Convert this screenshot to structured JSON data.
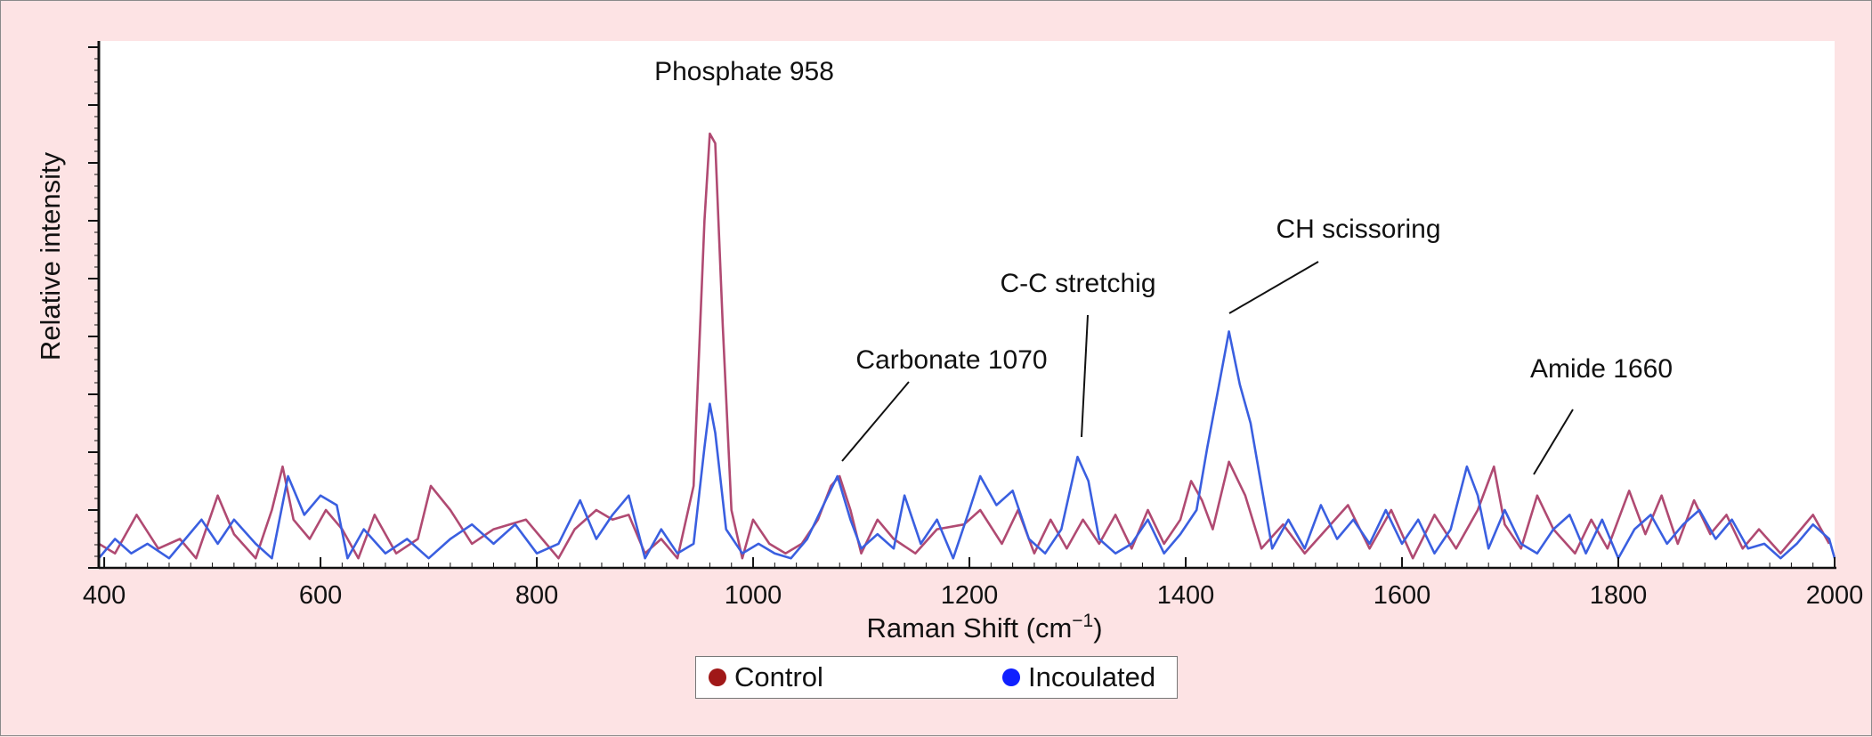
{
  "chart_data": {
    "type": "line",
    "title": "",
    "xlabel": "Raman Shift (cm",
    "xlabel_superscript": "−1",
    "xlabel_suffix": ")",
    "ylabel": "Relative intensity",
    "xlim": [
      400,
      2000
    ],
    "ylim": [
      0,
      1
    ],
    "x_ticks": [
      400,
      600,
      800,
      1000,
      1200,
      1400,
      1600,
      1800,
      2000
    ],
    "y_ticks_labeled": false,
    "grid": false,
    "legend_position": "bottom-center",
    "series": [
      {
        "name": "Control",
        "color": "#b04a72",
        "legend_color": "#a01818",
        "points": [
          [
            395,
            0.05
          ],
          [
            410,
            0.03
          ],
          [
            430,
            0.11
          ],
          [
            450,
            0.04
          ],
          [
            470,
            0.06
          ],
          [
            485,
            0.02
          ],
          [
            505,
            0.15
          ],
          [
            520,
            0.07
          ],
          [
            540,
            0.02
          ],
          [
            555,
            0.12
          ],
          [
            565,
            0.21
          ],
          [
            575,
            0.1
          ],
          [
            590,
            0.06
          ],
          [
            605,
            0.12
          ],
          [
            620,
            0.08
          ],
          [
            635,
            0.02
          ],
          [
            650,
            0.11
          ],
          [
            670,
            0.03
          ],
          [
            690,
            0.06
          ],
          [
            702,
            0.17
          ],
          [
            720,
            0.12
          ],
          [
            740,
            0.05
          ],
          [
            760,
            0.08
          ],
          [
            790,
            0.1
          ],
          [
            805,
            0.06
          ],
          [
            820,
            0.02
          ],
          [
            835,
            0.08
          ],
          [
            855,
            0.12
          ],
          [
            870,
            0.1
          ],
          [
            885,
            0.11
          ],
          [
            900,
            0.03
          ],
          [
            915,
            0.06
          ],
          [
            930,
            0.02
          ],
          [
            945,
            0.17
          ],
          [
            955,
            0.72
          ],
          [
            960,
            0.9
          ],
          [
            965,
            0.88
          ],
          [
            972,
            0.5
          ],
          [
            980,
            0.12
          ],
          [
            990,
            0.02
          ],
          [
            1000,
            0.1
          ],
          [
            1015,
            0.05
          ],
          [
            1030,
            0.03
          ],
          [
            1045,
            0.05
          ],
          [
            1060,
            0.1
          ],
          [
            1072,
            0.17
          ],
          [
            1080,
            0.19
          ],
          [
            1090,
            0.12
          ],
          [
            1100,
            0.03
          ],
          [
            1115,
            0.1
          ],
          [
            1130,
            0.06
          ],
          [
            1150,
            0.03
          ],
          [
            1170,
            0.08
          ],
          [
            1195,
            0.09
          ],
          [
            1210,
            0.12
          ],
          [
            1230,
            0.05
          ],
          [
            1245,
            0.12
          ],
          [
            1260,
            0.03
          ],
          [
            1275,
            0.1
          ],
          [
            1290,
            0.04
          ],
          [
            1305,
            0.1
          ],
          [
            1320,
            0.05
          ],
          [
            1335,
            0.11
          ],
          [
            1350,
            0.04
          ],
          [
            1365,
            0.12
          ],
          [
            1380,
            0.05
          ],
          [
            1395,
            0.1
          ],
          [
            1405,
            0.18
          ],
          [
            1415,
            0.14
          ],
          [
            1425,
            0.08
          ],
          [
            1440,
            0.22
          ],
          [
            1455,
            0.15
          ],
          [
            1470,
            0.04
          ],
          [
            1490,
            0.09
          ],
          [
            1510,
            0.03
          ],
          [
            1530,
            0.08
          ],
          [
            1550,
            0.13
          ],
          [
            1570,
            0.04
          ],
          [
            1590,
            0.12
          ],
          [
            1610,
            0.02
          ],
          [
            1630,
            0.11
          ],
          [
            1650,
            0.04
          ],
          [
            1670,
            0.12
          ],
          [
            1685,
            0.21
          ],
          [
            1695,
            0.09
          ],
          [
            1710,
            0.04
          ],
          [
            1725,
            0.15
          ],
          [
            1740,
            0.08
          ],
          [
            1760,
            0.03
          ],
          [
            1775,
            0.1
          ],
          [
            1790,
            0.04
          ],
          [
            1810,
            0.16
          ],
          [
            1825,
            0.07
          ],
          [
            1840,
            0.15
          ],
          [
            1855,
            0.05
          ],
          [
            1870,
            0.14
          ],
          [
            1885,
            0.07
          ],
          [
            1900,
            0.11
          ],
          [
            1915,
            0.04
          ],
          [
            1930,
            0.08
          ],
          [
            1950,
            0.03
          ],
          [
            1965,
            0.07
          ],
          [
            1980,
            0.11
          ],
          [
            1995,
            0.05
          ]
        ]
      },
      {
        "name": "Incoulated",
        "color": "#3a5fe0",
        "legend_color": "#1020ff",
        "points": [
          [
            395,
            0.02
          ],
          [
            410,
            0.06
          ],
          [
            425,
            0.03
          ],
          [
            440,
            0.05
          ],
          [
            460,
            0.02
          ],
          [
            475,
            0.06
          ],
          [
            490,
            0.1
          ],
          [
            505,
            0.05
          ],
          [
            520,
            0.1
          ],
          [
            540,
            0.05
          ],
          [
            555,
            0.02
          ],
          [
            570,
            0.19
          ],
          [
            585,
            0.11
          ],
          [
            600,
            0.15
          ],
          [
            615,
            0.13
          ],
          [
            625,
            0.02
          ],
          [
            640,
            0.08
          ],
          [
            660,
            0.03
          ],
          [
            680,
            0.06
          ],
          [
            700,
            0.02
          ],
          [
            720,
            0.06
          ],
          [
            740,
            0.09
          ],
          [
            760,
            0.05
          ],
          [
            780,
            0.09
          ],
          [
            800,
            0.03
          ],
          [
            820,
            0.05
          ],
          [
            840,
            0.14
          ],
          [
            855,
            0.06
          ],
          [
            870,
            0.11
          ],
          [
            885,
            0.15
          ],
          [
            900,
            0.02
          ],
          [
            915,
            0.08
          ],
          [
            930,
            0.03
          ],
          [
            945,
            0.05
          ],
          [
            955,
            0.25
          ],
          [
            960,
            0.34
          ],
          [
            965,
            0.28
          ],
          [
            975,
            0.08
          ],
          [
            990,
            0.03
          ],
          [
            1005,
            0.05
          ],
          [
            1020,
            0.03
          ],
          [
            1035,
            0.02
          ],
          [
            1050,
            0.06
          ],
          [
            1065,
            0.13
          ],
          [
            1078,
            0.19
          ],
          [
            1090,
            0.1
          ],
          [
            1100,
            0.04
          ],
          [
            1115,
            0.07
          ],
          [
            1130,
            0.04
          ],
          [
            1140,
            0.15
          ],
          [
            1155,
            0.05
          ],
          [
            1170,
            0.1
          ],
          [
            1185,
            0.02
          ],
          [
            1200,
            0.12
          ],
          [
            1210,
            0.19
          ],
          [
            1225,
            0.13
          ],
          [
            1240,
            0.16
          ],
          [
            1255,
            0.06
          ],
          [
            1270,
            0.03
          ],
          [
            1285,
            0.08
          ],
          [
            1300,
            0.23
          ],
          [
            1310,
            0.18
          ],
          [
            1320,
            0.06
          ],
          [
            1335,
            0.03
          ],
          [
            1350,
            0.05
          ],
          [
            1365,
            0.1
          ],
          [
            1380,
            0.03
          ],
          [
            1395,
            0.07
          ],
          [
            1410,
            0.12
          ],
          [
            1420,
            0.25
          ],
          [
            1430,
            0.37
          ],
          [
            1440,
            0.49
          ],
          [
            1450,
            0.38
          ],
          [
            1460,
            0.3
          ],
          [
            1470,
            0.17
          ],
          [
            1480,
            0.04
          ],
          [
            1495,
            0.1
          ],
          [
            1510,
            0.04
          ],
          [
            1525,
            0.13
          ],
          [
            1540,
            0.06
          ],
          [
            1555,
            0.1
          ],
          [
            1570,
            0.05
          ],
          [
            1585,
            0.12
          ],
          [
            1600,
            0.05
          ],
          [
            1615,
            0.1
          ],
          [
            1630,
            0.03
          ],
          [
            1645,
            0.08
          ],
          [
            1660,
            0.21
          ],
          [
            1670,
            0.15
          ],
          [
            1680,
            0.04
          ],
          [
            1695,
            0.12
          ],
          [
            1710,
            0.05
          ],
          [
            1725,
            0.03
          ],
          [
            1740,
            0.08
          ],
          [
            1755,
            0.11
          ],
          [
            1770,
            0.03
          ],
          [
            1785,
            0.1
          ],
          [
            1800,
            0.02
          ],
          [
            1815,
            0.08
          ],
          [
            1830,
            0.11
          ],
          [
            1845,
            0.05
          ],
          [
            1860,
            0.09
          ],
          [
            1875,
            0.12
          ],
          [
            1890,
            0.06
          ],
          [
            1905,
            0.1
          ],
          [
            1920,
            0.04
          ],
          [
            1935,
            0.05
          ],
          [
            1950,
            0.02
          ],
          [
            1965,
            0.05
          ],
          [
            1980,
            0.09
          ],
          [
            1995,
            0.06
          ],
          [
            2000,
            0.02
          ]
        ]
      }
    ],
    "annotations": [
      {
        "text": "Phosphate 958",
        "x": 958,
        "pointer": false
      },
      {
        "text": "Carbonate 1070",
        "x": 1080,
        "pointer": true
      },
      {
        "text": "C-C stretchig",
        "x": 1300,
        "pointer": true
      },
      {
        "text": "CH scissoring",
        "x": 1440,
        "pointer": true
      },
      {
        "text": "Amide 1660",
        "x": 1720,
        "pointer": true
      }
    ]
  }
}
